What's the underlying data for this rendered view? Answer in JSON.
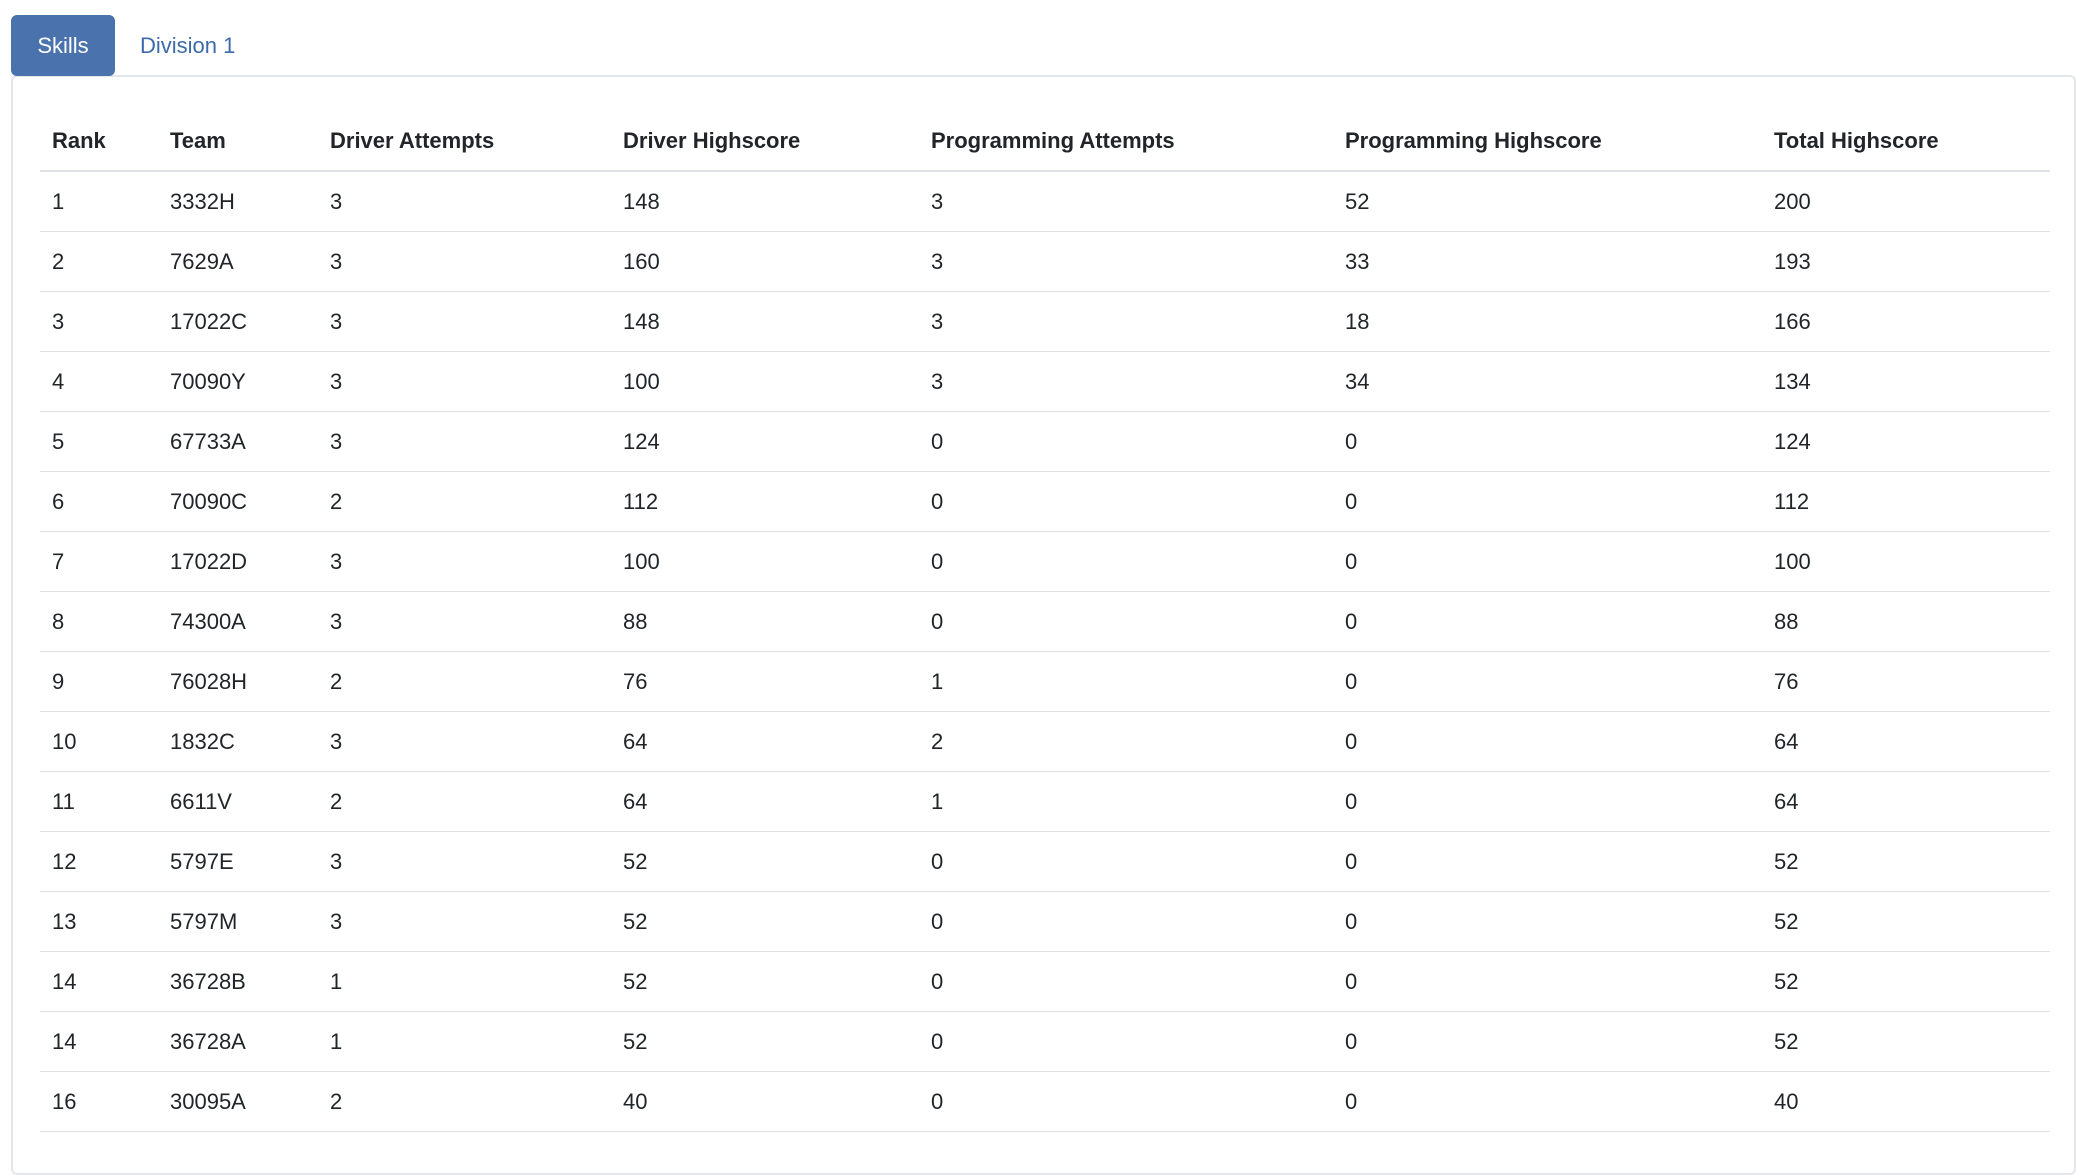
{
  "tabs": [
    {
      "label": "Skills",
      "active": true
    },
    {
      "label": "Division 1",
      "active": false
    }
  ],
  "colors": {
    "active_tab_bg": "#4a72ad",
    "inactive_tab_text": "#3d6aa8",
    "row_border": "#dee2e6"
  },
  "table": {
    "headers": [
      "Rank",
      "Team",
      "Driver Attempts",
      "Driver Highscore",
      "Programming Attempts",
      "Programming Highscore",
      "Total Highscore"
    ],
    "rows": [
      [
        "1",
        "3332H",
        "3",
        "148",
        "3",
        "52",
        "200"
      ],
      [
        "2",
        "7629A",
        "3",
        "160",
        "3",
        "33",
        "193"
      ],
      [
        "3",
        "17022C",
        "3",
        "148",
        "3",
        "18",
        "166"
      ],
      [
        "4",
        "70090Y",
        "3",
        "100",
        "3",
        "34",
        "134"
      ],
      [
        "5",
        "67733A",
        "3",
        "124",
        "0",
        "0",
        "124"
      ],
      [
        "6",
        "70090C",
        "2",
        "112",
        "0",
        "0",
        "112"
      ],
      [
        "7",
        "17022D",
        "3",
        "100",
        "0",
        "0",
        "100"
      ],
      [
        "8",
        "74300A",
        "3",
        "88",
        "0",
        "0",
        "88"
      ],
      [
        "9",
        "76028H",
        "2",
        "76",
        "1",
        "0",
        "76"
      ],
      [
        "10",
        "1832C",
        "3",
        "64",
        "2",
        "0",
        "64"
      ],
      [
        "11",
        "6611V",
        "2",
        "64",
        "1",
        "0",
        "64"
      ],
      [
        "12",
        "5797E",
        "3",
        "52",
        "0",
        "0",
        "52"
      ],
      [
        "13",
        "5797M",
        "3",
        "52",
        "0",
        "0",
        "52"
      ],
      [
        "14",
        "36728B",
        "1",
        "52",
        "0",
        "0",
        "52"
      ],
      [
        "14",
        "36728A",
        "1",
        "52",
        "0",
        "0",
        "52"
      ],
      [
        "16",
        "30095A",
        "2",
        "40",
        "0",
        "0",
        "40"
      ]
    ]
  }
}
